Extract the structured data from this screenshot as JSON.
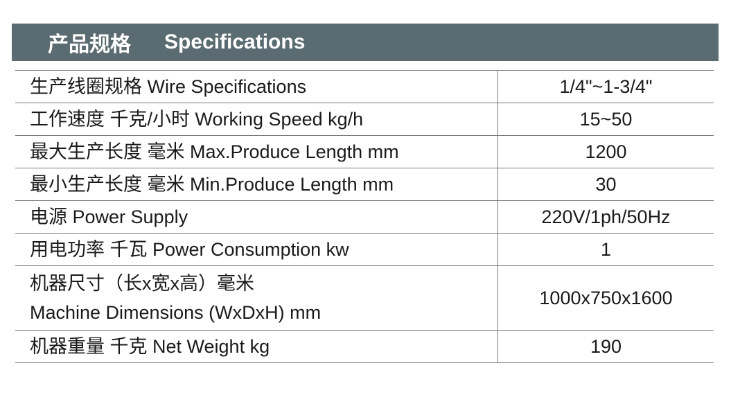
{
  "header": {
    "title_cn": "产品规格",
    "title_en": "Specifications"
  },
  "colors": {
    "header_bg": "#5b6b72",
    "header_text": "#ffffff"
  },
  "rows": [
    {
      "label": "生产线圈规格   Wire Specifications",
      "value": "1/4\"~1-3/4\""
    },
    {
      "label": "工作速度  千克/小时   Working Speed  kg/h",
      "value": "15~50"
    },
    {
      "label": "最大生产长度  毫米   Max.Produce Length  mm",
      "value": "1200"
    },
    {
      "label": "最小生产长度  毫米   Min.Produce Length  mm",
      "value": "30"
    },
    {
      "label": "电源   Power Supply",
      "value": "220V/1ph/50Hz"
    },
    {
      "label": "用电功率  千瓦   Power Consumption  kw",
      "value": "1"
    },
    {
      "label": "机器尺寸（长x宽x高）毫米",
      "label2": "Machine Dimensions (WxDxH)  mm",
      "value": "1000x750x1600"
    },
    {
      "label": "机器重量  千克   Net Weight  kg",
      "value": "190"
    }
  ]
}
